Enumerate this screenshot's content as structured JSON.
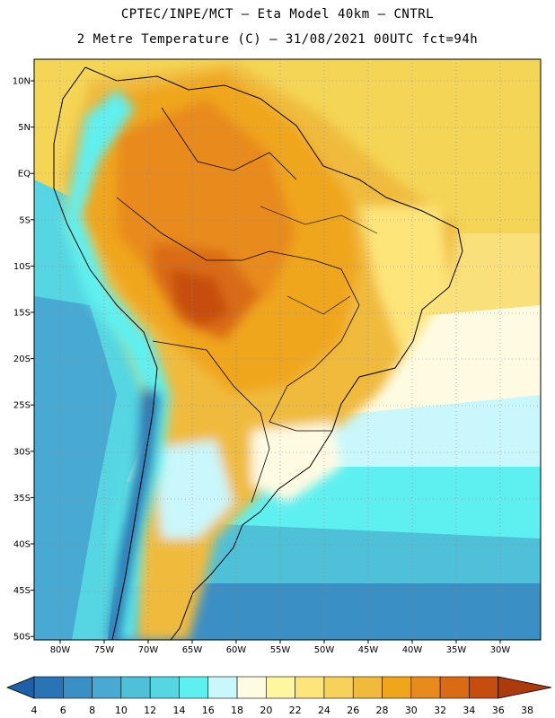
{
  "header": {
    "line1": "CPTEC/INPE/MCT –  Eta Model 40km – CNTRL",
    "line2": "2 Metre Temperature (C) – 31/08/2021 00UTC fct=94h"
  },
  "axes": {
    "lat_labels": [
      "10N",
      "5N",
      "EQ",
      "5S",
      "10S",
      "15S",
      "20S",
      "25S",
      "30S",
      "35S",
      "40S",
      "45S",
      "50S"
    ],
    "lon_labels": [
      "80W",
      "75W",
      "70W",
      "65W",
      "60W",
      "55W",
      "50W",
      "45W",
      "40W",
      "35W",
      "30W"
    ]
  },
  "colorbar": {
    "labels": [
      "4",
      "6",
      "8",
      "10",
      "12",
      "14",
      "16",
      "18",
      "20",
      "22",
      "24",
      "26",
      "28",
      "30",
      "32",
      "34",
      "36",
      "38"
    ],
    "colors": [
      "#1f5fa8",
      "#2a73b5",
      "#3a8fc5",
      "#48a9d2",
      "#4ec1d9",
      "#55d6e2",
      "#5ef0f0",
      "#c9f7fb",
      "#fffbe3",
      "#fff6a0",
      "#fde57a",
      "#f7d25a",
      "#f0bb3c",
      "#f0a61a",
      "#e88a1c",
      "#da6a14",
      "#c64d0e",
      "#ac3a0a"
    ]
  },
  "map_regions": {
    "ocean_north": "#f5d555",
    "ocean_mid": "#f9e07a",
    "ocean_south_1": "#c9f7fb",
    "ocean_south_2": "#5ef0f0",
    "ocean_south_3": "#4ec1d9",
    "ocean_south_4": "#3a8fc5",
    "land_hot": "#e88a1c",
    "land_very_hot": "#c64d0e",
    "land_warm": "#f0a61a",
    "andes_cold": "#2a73b5"
  }
}
